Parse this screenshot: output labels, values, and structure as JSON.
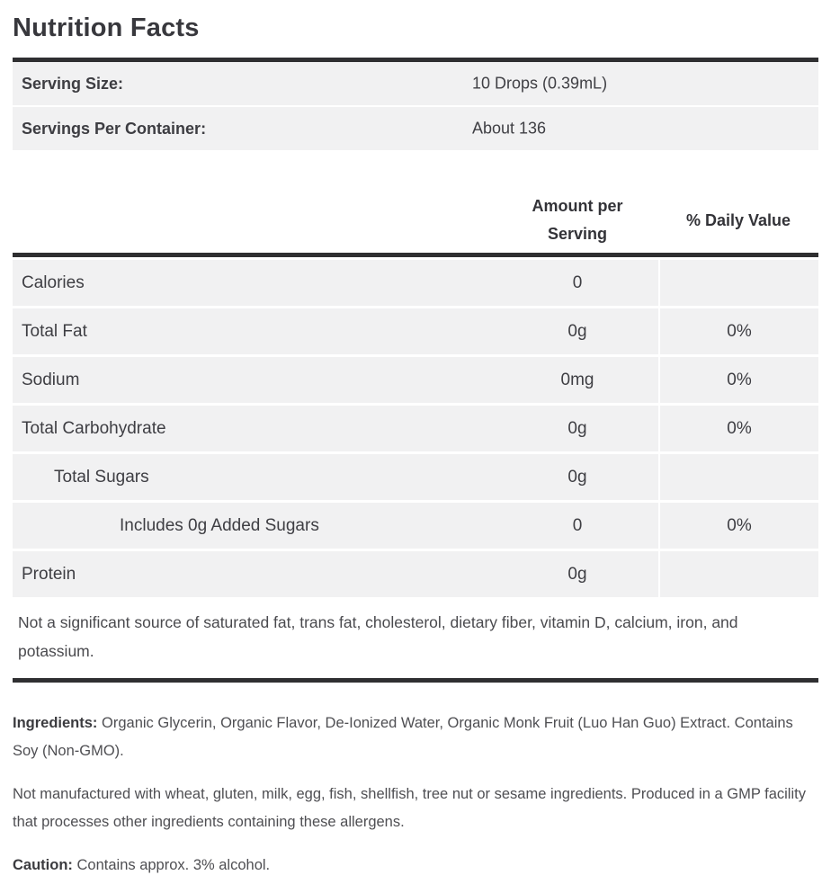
{
  "title": "Nutrition Facts",
  "serving_info": {
    "rows": [
      {
        "label": "Serving Size:",
        "value": "10 Drops (0.39mL)"
      },
      {
        "label": "Servings Per Container:",
        "value": "About 136"
      }
    ]
  },
  "table": {
    "headers": {
      "amount": "Amount per Serving",
      "daily_value": "% Daily Value"
    },
    "rows": [
      {
        "label": "Calories",
        "amount": "0",
        "daily_value": "",
        "indent": 0
      },
      {
        "label": "Total Fat",
        "amount": "0g",
        "daily_value": "0%",
        "indent": 0
      },
      {
        "label": "Sodium",
        "amount": "0mg",
        "daily_value": "0%",
        "indent": 0
      },
      {
        "label": "Total Carbohydrate",
        "amount": "0g",
        "daily_value": "0%",
        "indent": 0
      },
      {
        "label": "Total Sugars",
        "amount": "0g",
        "daily_value": "",
        "indent": 1
      },
      {
        "label": "Includes 0g Added Sugars",
        "amount": "0",
        "daily_value": "0%",
        "indent": 2
      },
      {
        "label": "Protein",
        "amount": "0g",
        "daily_value": "",
        "indent": 0
      }
    ],
    "footnote": "Not a significant source of saturated fat, trans fat, cholesterol, dietary fiber, vitamin D, calcium, iron, and potassium."
  },
  "paragraphs": {
    "ingredients_label": "Ingredients:",
    "ingredients_text": "Organic Glycerin, Organic Flavor, De-Ionized Water, Organic Monk Fruit (Luo Han Guo) Extract. Contains Soy (Non-GMO).",
    "allergen_text": "Not manufactured with wheat, gluten, milk, egg, fish, shellfish, tree nut or sesame ingredients. Produced in a GMP facility that processes other ingredients containing these allergens.",
    "caution_label": "Caution:",
    "caution_text": "Contains approx. 3% alcohol."
  },
  "colors": {
    "divider_bar": "#2f2f31",
    "row_background": "#f1f1f2",
    "text_dark": "#3e3e43"
  }
}
